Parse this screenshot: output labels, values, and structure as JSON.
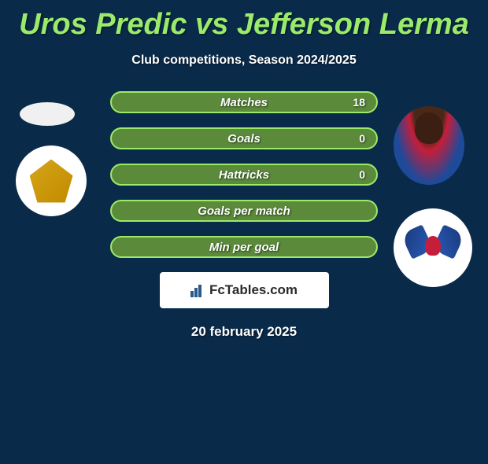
{
  "title": "Uros Predic vs Jefferson Lerma",
  "subtitle": "Club competitions, Season 2024/2025",
  "stats": [
    {
      "label": "Matches",
      "right_value": "18"
    },
    {
      "label": "Goals",
      "right_value": "0"
    },
    {
      "label": "Hattricks",
      "right_value": "0"
    },
    {
      "label": "Goals per match",
      "right_value": ""
    },
    {
      "label": "Min per goal",
      "right_value": ""
    }
  ],
  "watermark": "FcTables.com",
  "date": "20 february 2025",
  "colors": {
    "background": "#0a2a4a",
    "title_color": "#9aeb6a",
    "bar_fill": "#5a8a3a",
    "bar_border": "#9aeb6a",
    "text_white": "#ffffff"
  }
}
